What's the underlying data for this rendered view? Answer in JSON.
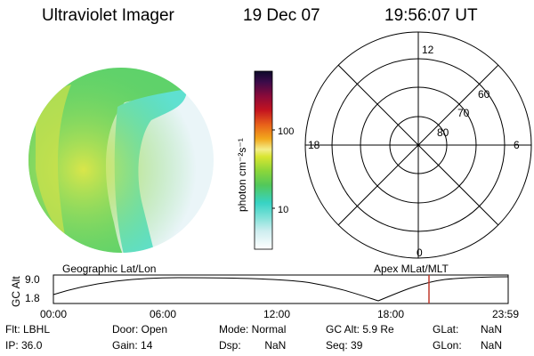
{
  "header": {
    "instrument": "Ultraviolet Imager",
    "date": "19 Dec 07",
    "time": "19:56:07 UT"
  },
  "colorbar": {
    "unit_label": "photon cm⁻²s⁻¹",
    "ticks": [
      "100",
      "10"
    ]
  },
  "polar_plot": {
    "mlt_labels": {
      "top": "12",
      "left": "18",
      "right": "6",
      "bottom": "0"
    },
    "lat_labels": [
      "60",
      "70",
      "80"
    ]
  },
  "orbit_panel": {
    "left_title": "Geographic Lat/Lon",
    "right_title": "Apex MLat/MLT",
    "y_axis_label": "GC Alt",
    "y_ticks": [
      "9.0",
      "1.8"
    ],
    "x_ticks": [
      "00:00",
      "06:00",
      "12:00",
      "18:00",
      "23:59"
    ]
  },
  "footer": {
    "flt": "Flt: LBHL",
    "ip": "IP: 36.0",
    "door": "Door: Open",
    "gain": "Gain: 14",
    "mode": "Mode: Normal",
    "dsp": "Dsp:        NaN",
    "gc_alt": "GC Alt: 5.9 Re",
    "seq": "Seq: 39",
    "glat_label": "GLat:",
    "glat_value": "NaN",
    "glon_label": "GLon:",
    "glon_value": "NaN"
  },
  "colors": {
    "marker": "#c0392b",
    "bright": "#d9e64a",
    "green": "#5fd26a",
    "cyan": "#5fe0d0",
    "pale": "#e6f4f7"
  }
}
